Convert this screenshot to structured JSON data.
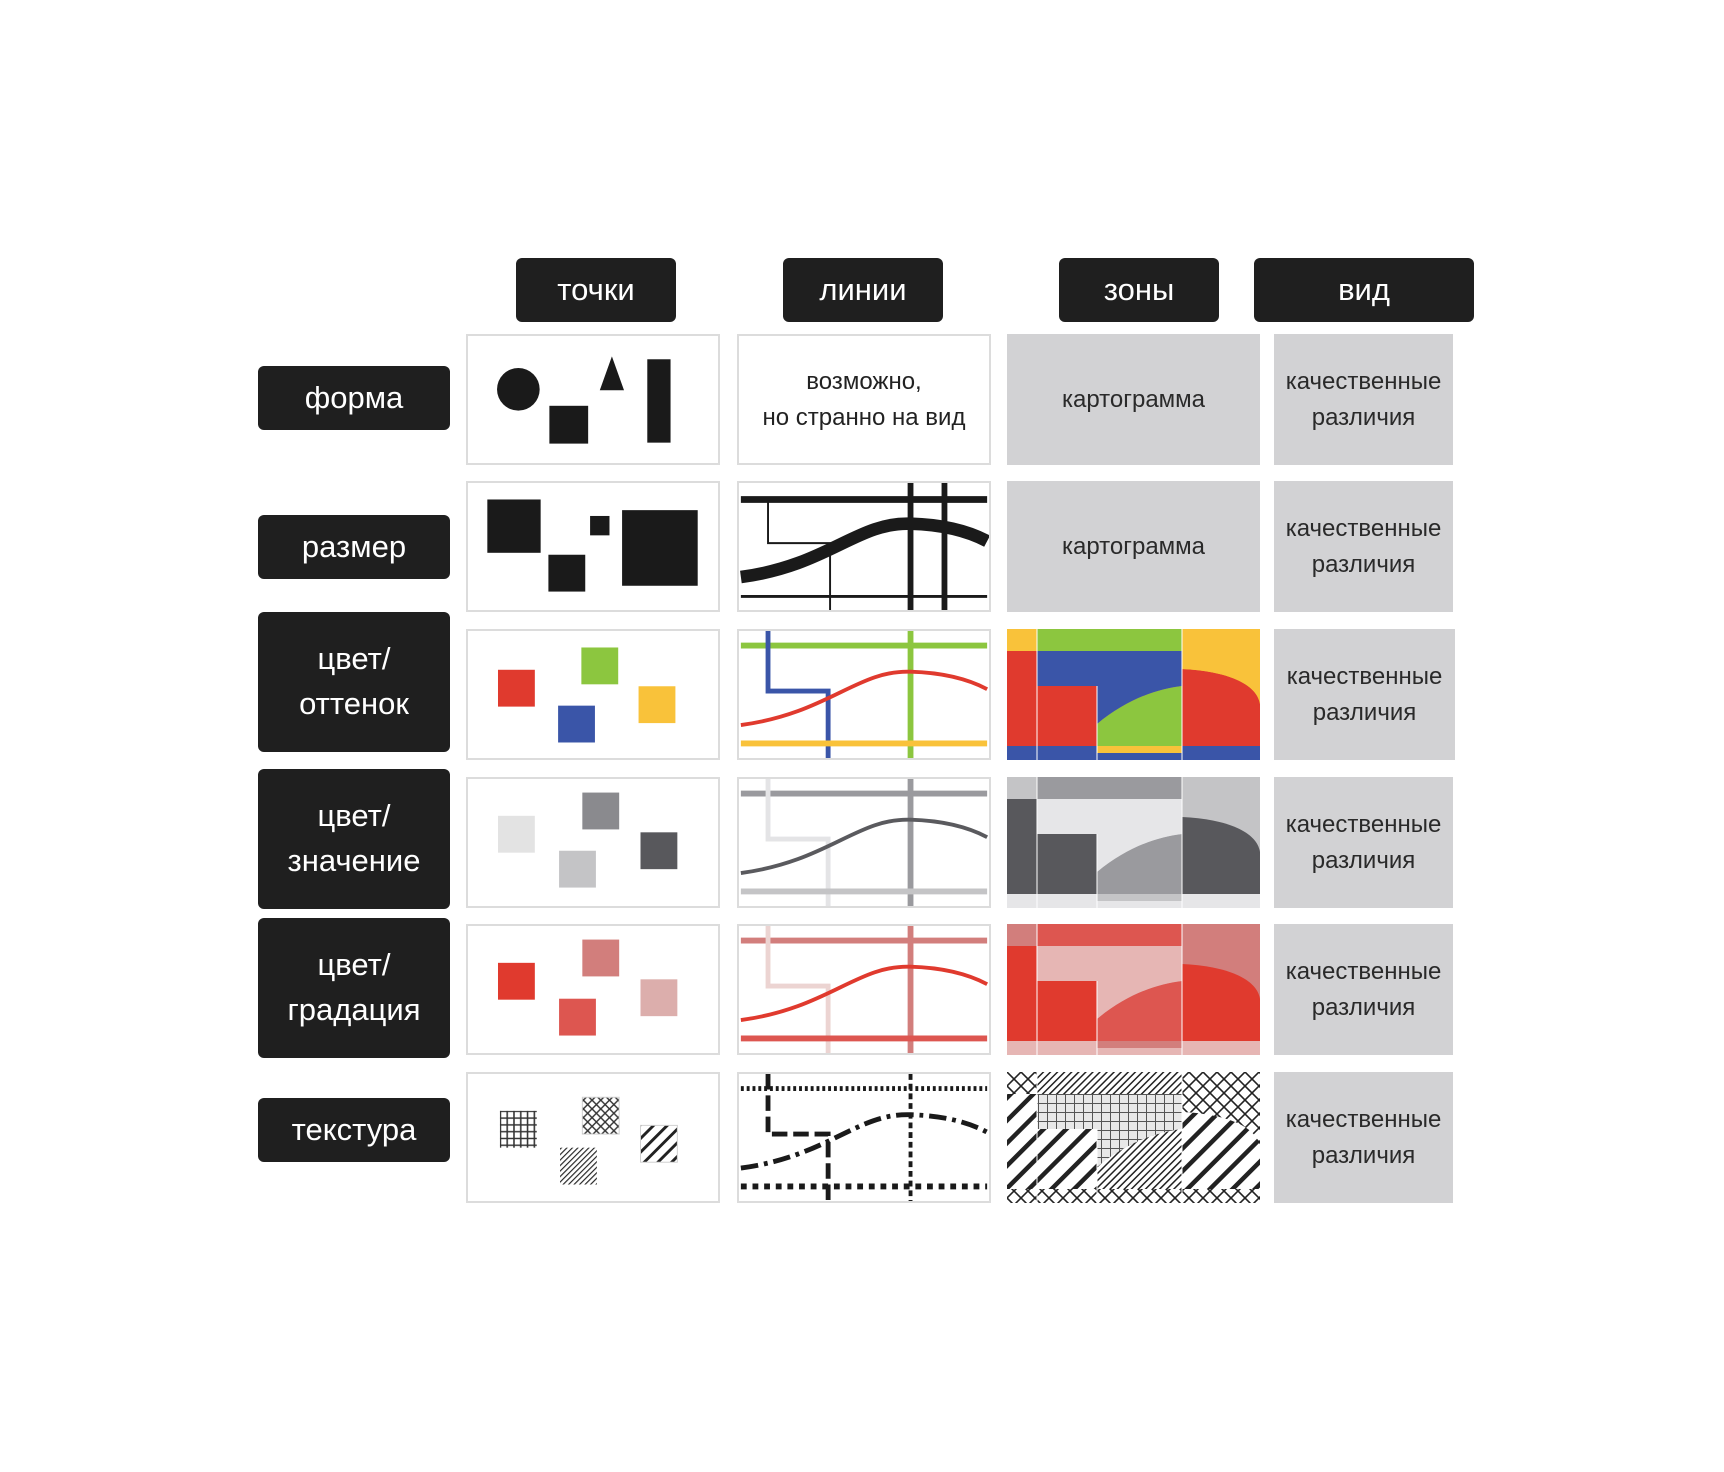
{
  "column_headers": [
    "точки",
    "линии",
    "зоны",
    "вид"
  ],
  "row_labels": [
    "форма",
    "размер",
    "цвет/\nоттенок",
    "цвет/\nзначение",
    "цвет/\nградация",
    "текстура"
  ],
  "cells": {
    "forma_lines_note": "возможно,\nно странно на вид",
    "cartogram": "картограмма",
    "qualitative": "качественные\nразличия"
  },
  "colors": {
    "label_bg": "#1f1f1f",
    "label_text": "#ffffff",
    "gray_cell_bg": "#d2d2d4",
    "red": "#e03a2e",
    "green": "#8cc63f",
    "blue": "#3a55a8",
    "yellow": "#f9c23a"
  }
}
